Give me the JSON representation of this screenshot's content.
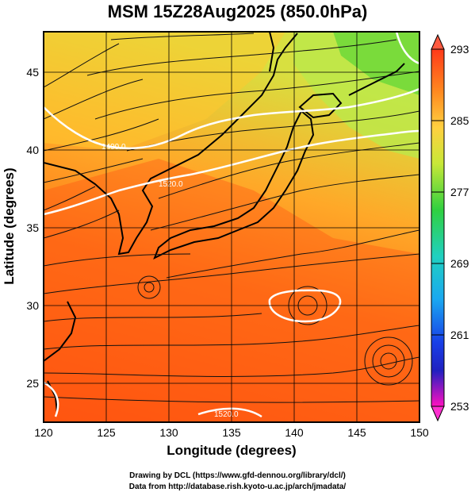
{
  "title": "MSM 15Z28Aug2025 (850.0hPa)",
  "x_label": "Longitude (degrees)",
  "y_label": "Latitude  (degrees)",
  "credit_line1": "Drawing by DCL (https://www.gfd-dennou.org/library/dcl/)",
  "credit_line2": "Data from http://database.rish.kyoto-u.ac.jp/arch/jmadata/",
  "x_ticks": [
    "120",
    "125",
    "130",
    "135",
    "140",
    "145",
    "150"
  ],
  "y_ticks": [
    "25",
    "30",
    "35",
    "40",
    "45"
  ],
  "colorbar_ticks": [
    "293",
    "285",
    "277",
    "269",
    "261",
    "253"
  ],
  "contour_labels": [
    "1490.0",
    "1520.0",
    "1520.0"
  ],
  "map": {
    "lon_range": [
      120,
      150
    ],
    "lat_range": [
      22.5,
      47.6
    ],
    "variable_min": 253,
    "variable_max": 293
  }
}
